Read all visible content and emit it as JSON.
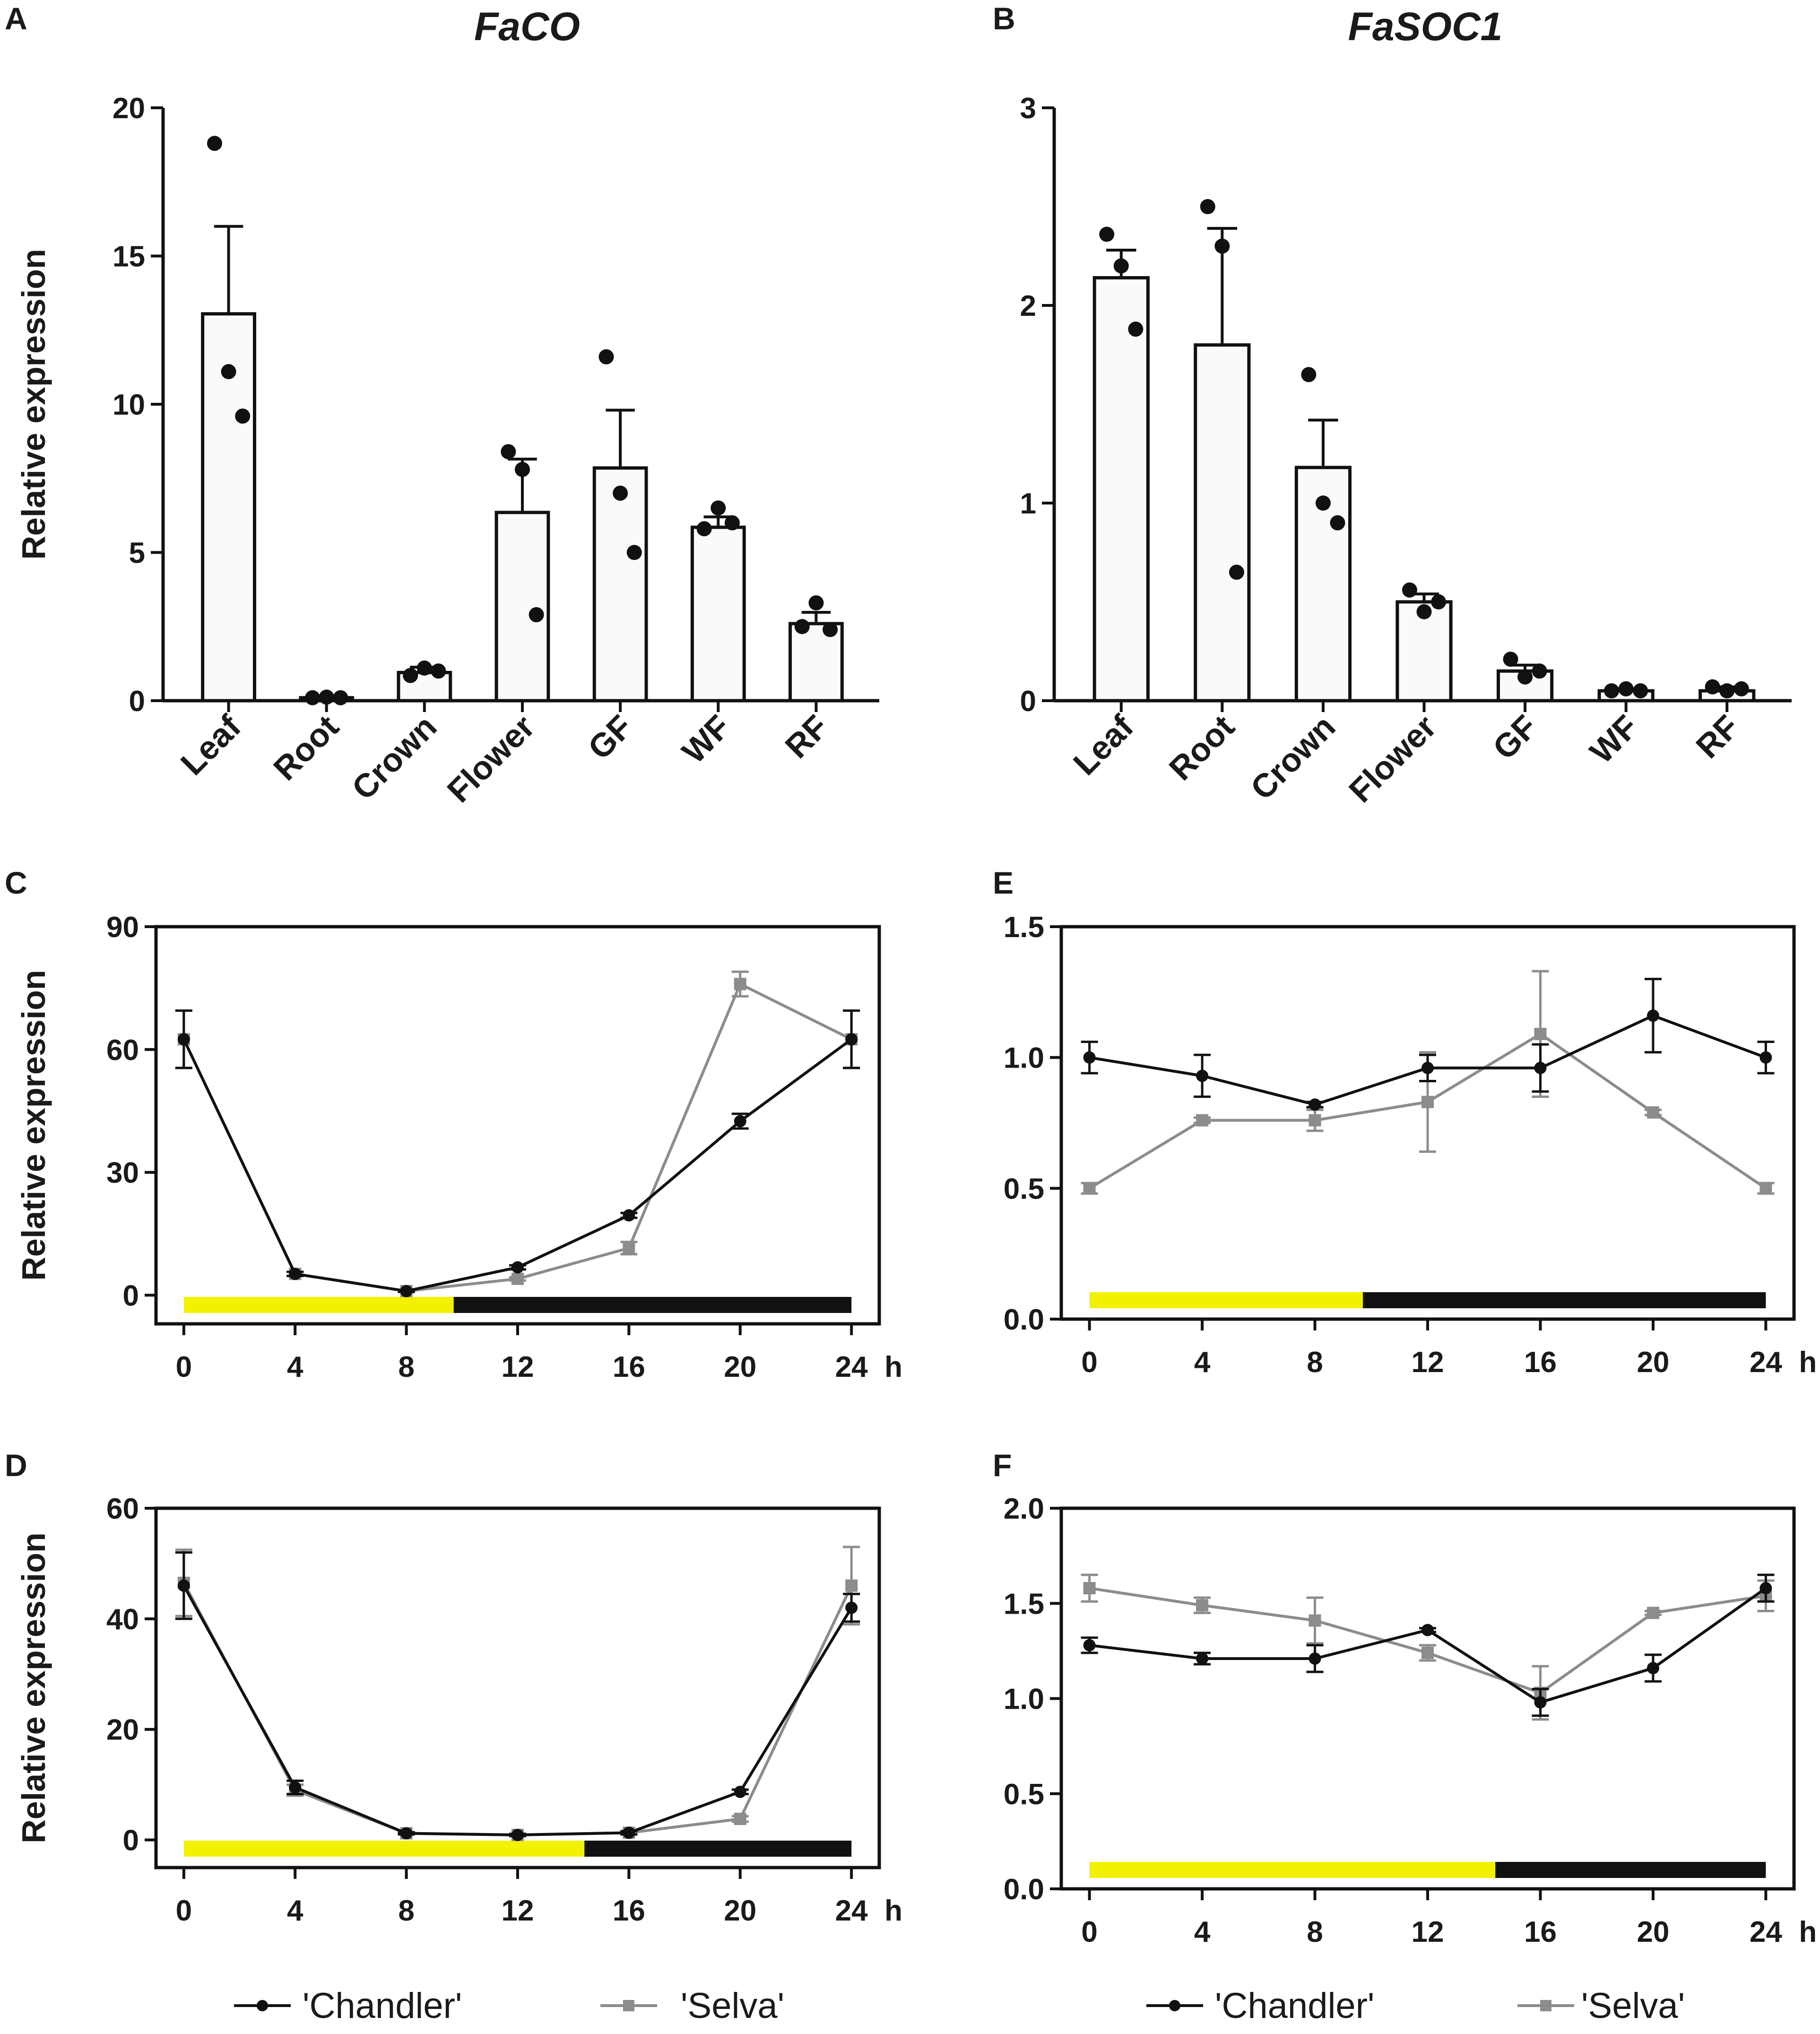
{
  "colors": {
    "axis": "#111111",
    "chandler": "#111111",
    "selva": "#8c8c8c",
    "light": "#f2f200",
    "dark": "#111111",
    "bar_fill": "#fafafa"
  },
  "legend": {
    "chandler_label": "'Chandler'",
    "selva_label": "'Selva'"
  },
  "chart_data": [
    {
      "id": "A",
      "panel": "A",
      "type": "bar",
      "title": "FaCO",
      "xlabel": "",
      "ylabel": "Relative expression",
      "categories": [
        "Leaf",
        "Root",
        "Crown",
        "Flower",
        "GF",
        "WF",
        "RF"
      ],
      "values": [
        13.05,
        0.1,
        0.95,
        6.35,
        7.85,
        5.85,
        2.6
      ],
      "errors": [
        2.95,
        0.05,
        0.18,
        1.8,
        1.95,
        0.35,
        0.38
      ],
      "points": [
        [
          18.8,
          11.1,
          9.6
        ],
        [
          0.1,
          0.12,
          0.1
        ],
        [
          0.85,
          1.1,
          1.0
        ],
        [
          8.4,
          7.8,
          2.9
        ],
        [
          11.6,
          7.0,
          5.0
        ],
        [
          5.8,
          6.5,
          6.0
        ],
        [
          2.5,
          3.3,
          2.4
        ]
      ],
      "ylim": [
        0,
        20
      ],
      "yticks": [
        0,
        5,
        10,
        15,
        20
      ],
      "ytick_labels": [
        "0",
        "5",
        "10",
        "15",
        "20"
      ]
    },
    {
      "id": "B",
      "panel": "B",
      "type": "bar",
      "title": "FaSOC1",
      "xlabel": "",
      "ylabel": "",
      "categories": [
        "Leaf",
        "Root",
        "Crown",
        "Flower",
        "GF",
        "WF",
        "RF"
      ],
      "values": [
        2.14,
        1.8,
        1.18,
        0.5,
        0.15,
        0.05,
        0.05
      ],
      "errors": [
        0.14,
        0.59,
        0.24,
        0.04,
        0.03,
        0.01,
        0.02
      ],
      "points": [
        [
          2.36,
          2.2,
          1.88
        ],
        [
          2.5,
          2.3,
          0.65
        ],
        [
          1.65,
          1.0,
          0.9
        ],
        [
          0.56,
          0.45,
          0.5
        ],
        [
          0.21,
          0.12,
          0.15
        ],
        [
          0.05,
          0.06,
          0.05
        ],
        [
          0.07,
          0.05,
          0.06
        ]
      ],
      "ylim": [
        0,
        3
      ],
      "yticks": [
        0,
        1,
        2,
        3
      ],
      "ytick_labels": [
        "0",
        "1",
        "2",
        "3"
      ]
    },
    {
      "id": "C",
      "panel": "C",
      "type": "line",
      "title": "",
      "xlabel": "h",
      "ylabel": "Relative expression",
      "x": [
        0,
        4,
        8,
        12,
        16,
        20,
        24
      ],
      "xtick_labels": [
        "0",
        "4",
        "8",
        "12",
        "16",
        "20",
        "24"
      ],
      "xlim": [
        -1,
        25
      ],
      "ylim": [
        -7,
        90
      ],
      "yticks": [
        0,
        30,
        60,
        90
      ],
      "ytick_labels": [
        "0",
        "30",
        "60",
        "90"
      ],
      "light_end": 9.7,
      "series": [
        {
          "name": "'Chandler'",
          "values": [
            62.5,
            5.2,
            1.0,
            6.8,
            19.5,
            42.5,
            62.5
          ],
          "errors": [
            7.0,
            0.5,
            0.2,
            0.5,
            0.6,
            1.8,
            7.0
          ]
        },
        {
          "name": "'Selva'",
          "values": [
            62.5,
            5.2,
            1.0,
            4.0,
            11.5,
            76.0,
            62.5
          ],
          "errors": [
            7.0,
            0.5,
            0.2,
            0.4,
            1.5,
            3.0,
            7.0
          ]
        }
      ]
    },
    {
      "id": "E",
      "panel": "E",
      "type": "line",
      "title": "",
      "xlabel": "h",
      "ylabel": "",
      "x": [
        0,
        4,
        8,
        12,
        16,
        20,
        24
      ],
      "xtick_labels": [
        "0",
        "4",
        "8",
        "12",
        "16",
        "20",
        "24"
      ],
      "xlim": [
        -1,
        25
      ],
      "ylim": [
        0,
        1.5
      ],
      "yticks": [
        0.0,
        0.5,
        1.0,
        1.5
      ],
      "ytick_labels": [
        "0.0",
        "0.5",
        "1.0",
        "1.5"
      ],
      "light_end": 9.7,
      "series": [
        {
          "name": "'Chandler'",
          "values": [
            1.0,
            0.93,
            0.82,
            0.96,
            0.96,
            1.16,
            1.0
          ],
          "errors": [
            0.06,
            0.08,
            0.01,
            0.05,
            0.09,
            0.14,
            0.06
          ]
        },
        {
          "name": "'Selva'",
          "values": [
            0.5,
            0.76,
            0.76,
            0.83,
            1.09,
            0.79,
            0.5
          ],
          "errors": [
            0.02,
            0.01,
            0.04,
            0.19,
            0.24,
            0.01,
            0.02
          ]
        }
      ]
    },
    {
      "id": "D",
      "panel": "D",
      "type": "line",
      "title": "",
      "xlabel": "h",
      "ylabel": "Relative expression",
      "x": [
        0,
        4,
        8,
        12,
        16,
        20,
        24
      ],
      "xtick_labels": [
        "0",
        "4",
        "8",
        "12",
        "16",
        "20",
        "24"
      ],
      "xlim": [
        -1,
        25
      ],
      "ylim": [
        -5,
        60
      ],
      "yticks": [
        0,
        20,
        40,
        60
      ],
      "ytick_labels": [
        "0",
        "20",
        "40",
        "60"
      ],
      "light_end": 14.4,
      "series": [
        {
          "name": "'Chandler'",
          "values": [
            46.0,
            9.5,
            1.2,
            0.9,
            1.3,
            8.7,
            42.0
          ],
          "errors": [
            6.0,
            1.2,
            0.2,
            0.2,
            0.3,
            0.4,
            2.5
          ]
        },
        {
          "name": "'Selva'",
          "values": [
            46.5,
            9.0,
            1.2,
            0.9,
            1.3,
            3.8,
            46.0
          ],
          "errors": [
            6.0,
            1.0,
            0.2,
            0.2,
            0.3,
            0.5,
            7.0
          ]
        }
      ]
    },
    {
      "id": "F",
      "panel": "F",
      "type": "line",
      "title": "",
      "xlabel": "h",
      "ylabel": "",
      "x": [
        0,
        4,
        8,
        12,
        16,
        20,
        24
      ],
      "xtick_labels": [
        "0",
        "4",
        "8",
        "12",
        "16",
        "20",
        "24"
      ],
      "xlim": [
        -1,
        25
      ],
      "ylim": [
        0,
        2.0
      ],
      "yticks": [
        0.0,
        0.5,
        1.0,
        1.5,
        2.0
      ],
      "ytick_labels": [
        "0.0",
        "0.5",
        "1.0",
        "1.5",
        "2.0"
      ],
      "light_end": 14.4,
      "series": [
        {
          "name": "'Chandler'",
          "values": [
            1.28,
            1.21,
            1.21,
            1.36,
            0.98,
            1.16,
            1.58
          ],
          "errors": [
            0.04,
            0.03,
            0.07,
            0.01,
            0.07,
            0.07,
            0.07
          ]
        },
        {
          "name": "'Selva'",
          "values": [
            1.58,
            1.49,
            1.41,
            1.24,
            1.03,
            1.45,
            1.54
          ],
          "errors": [
            0.07,
            0.04,
            0.12,
            0.04,
            0.14,
            0.01,
            0.08
          ]
        }
      ]
    }
  ]
}
